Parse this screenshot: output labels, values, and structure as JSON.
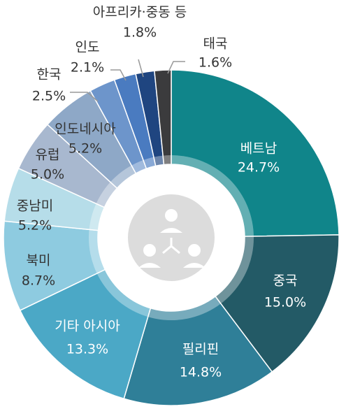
{
  "chart_data": {
    "type": "donut",
    "categories": [
      "베트남",
      "중국",
      "필리핀",
      "기타 아시아",
      "북미",
      "중남미",
      "유럽",
      "인도네시아",
      "한국",
      "인도",
      "아프리카·중동 등",
      "태국"
    ],
    "values": [
      24.7,
      15.0,
      14.8,
      13.3,
      8.7,
      5.2,
      5.0,
      5.2,
      2.5,
      2.1,
      1.8,
      1.6
    ],
    "value_labels": [
      "24.7%",
      "15.0%",
      "14.8%",
      "13.3%",
      "8.7%",
      "5.2%",
      "5.0%",
      "5.2%",
      "2.5%",
      "2.1%",
      "1.8%",
      "1.6%"
    ],
    "colors": [
      "#10858a",
      "#235a66",
      "#2f7f98",
      "#4ba8c6",
      "#8ecbe0",
      "#b6dde9",
      "#a8b8cf",
      "#8ea8c7",
      "#6d95cb",
      "#4a7bc0",
      "#1f4580",
      "#3b3b3d"
    ]
  }
}
